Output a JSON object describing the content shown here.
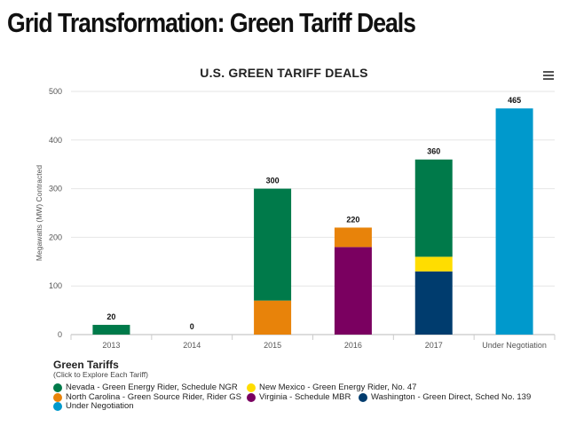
{
  "page": {
    "title": "Grid Transformation: Green Tariff Deals"
  },
  "menu": {
    "icon": "hamburger-menu-icon"
  },
  "legend": {
    "title": "Green Tariffs",
    "subtitle": "(Click to Explore Each Tariff)"
  },
  "colors": {
    "Nevada": "#007a4a",
    "New Mexico": "#ffdd00",
    "North Carolina": "#e8830a",
    "Virginia": "#7a0060",
    "Washington": "#003c6e",
    "Under Negotiation": "#0099cc"
  },
  "chart_data": {
    "type": "bar",
    "stacked": true,
    "title": "U.S. GREEN TARIFF DEALS",
    "xlabel": "",
    "ylabel": "Megawatts (MW) Contracted",
    "ylim": [
      0,
      500
    ],
    "yticks": [
      0,
      100,
      200,
      300,
      400,
      500
    ],
    "grid": true,
    "legend_position": "bottom",
    "categories": [
      "2013",
      "2014",
      "2015",
      "2016",
      "2017",
      "Under Negotiation"
    ],
    "totals": [
      20,
      0,
      300,
      220,
      360,
      465
    ],
    "series": [
      {
        "name": "Nevada - Green Energy Rider, Schedule NGR",
        "key": "Nevada",
        "values": [
          20,
          0,
          230,
          0,
          200,
          0
        ]
      },
      {
        "name": "New Mexico - Green Energy Rider, No. 47",
        "key": "New Mexico",
        "values": [
          0,
          0,
          0,
          0,
          30,
          0
        ]
      },
      {
        "name": "North Carolina - Green Source Rider, Rider GS",
        "key": "North Carolina",
        "values": [
          0,
          0,
          70,
          40,
          0,
          0
        ]
      },
      {
        "name": "Virginia - Schedule MBR",
        "key": "Virginia",
        "values": [
          0,
          0,
          0,
          180,
          0,
          0
        ]
      },
      {
        "name": "Washington - Green Direct, Sched No. 139",
        "key": "Washington",
        "values": [
          0,
          0,
          0,
          0,
          130,
          0
        ]
      },
      {
        "name": "Under Negotiation",
        "key": "Under Negotiation",
        "values": [
          0,
          0,
          0,
          0,
          0,
          465
        ]
      }
    ]
  }
}
